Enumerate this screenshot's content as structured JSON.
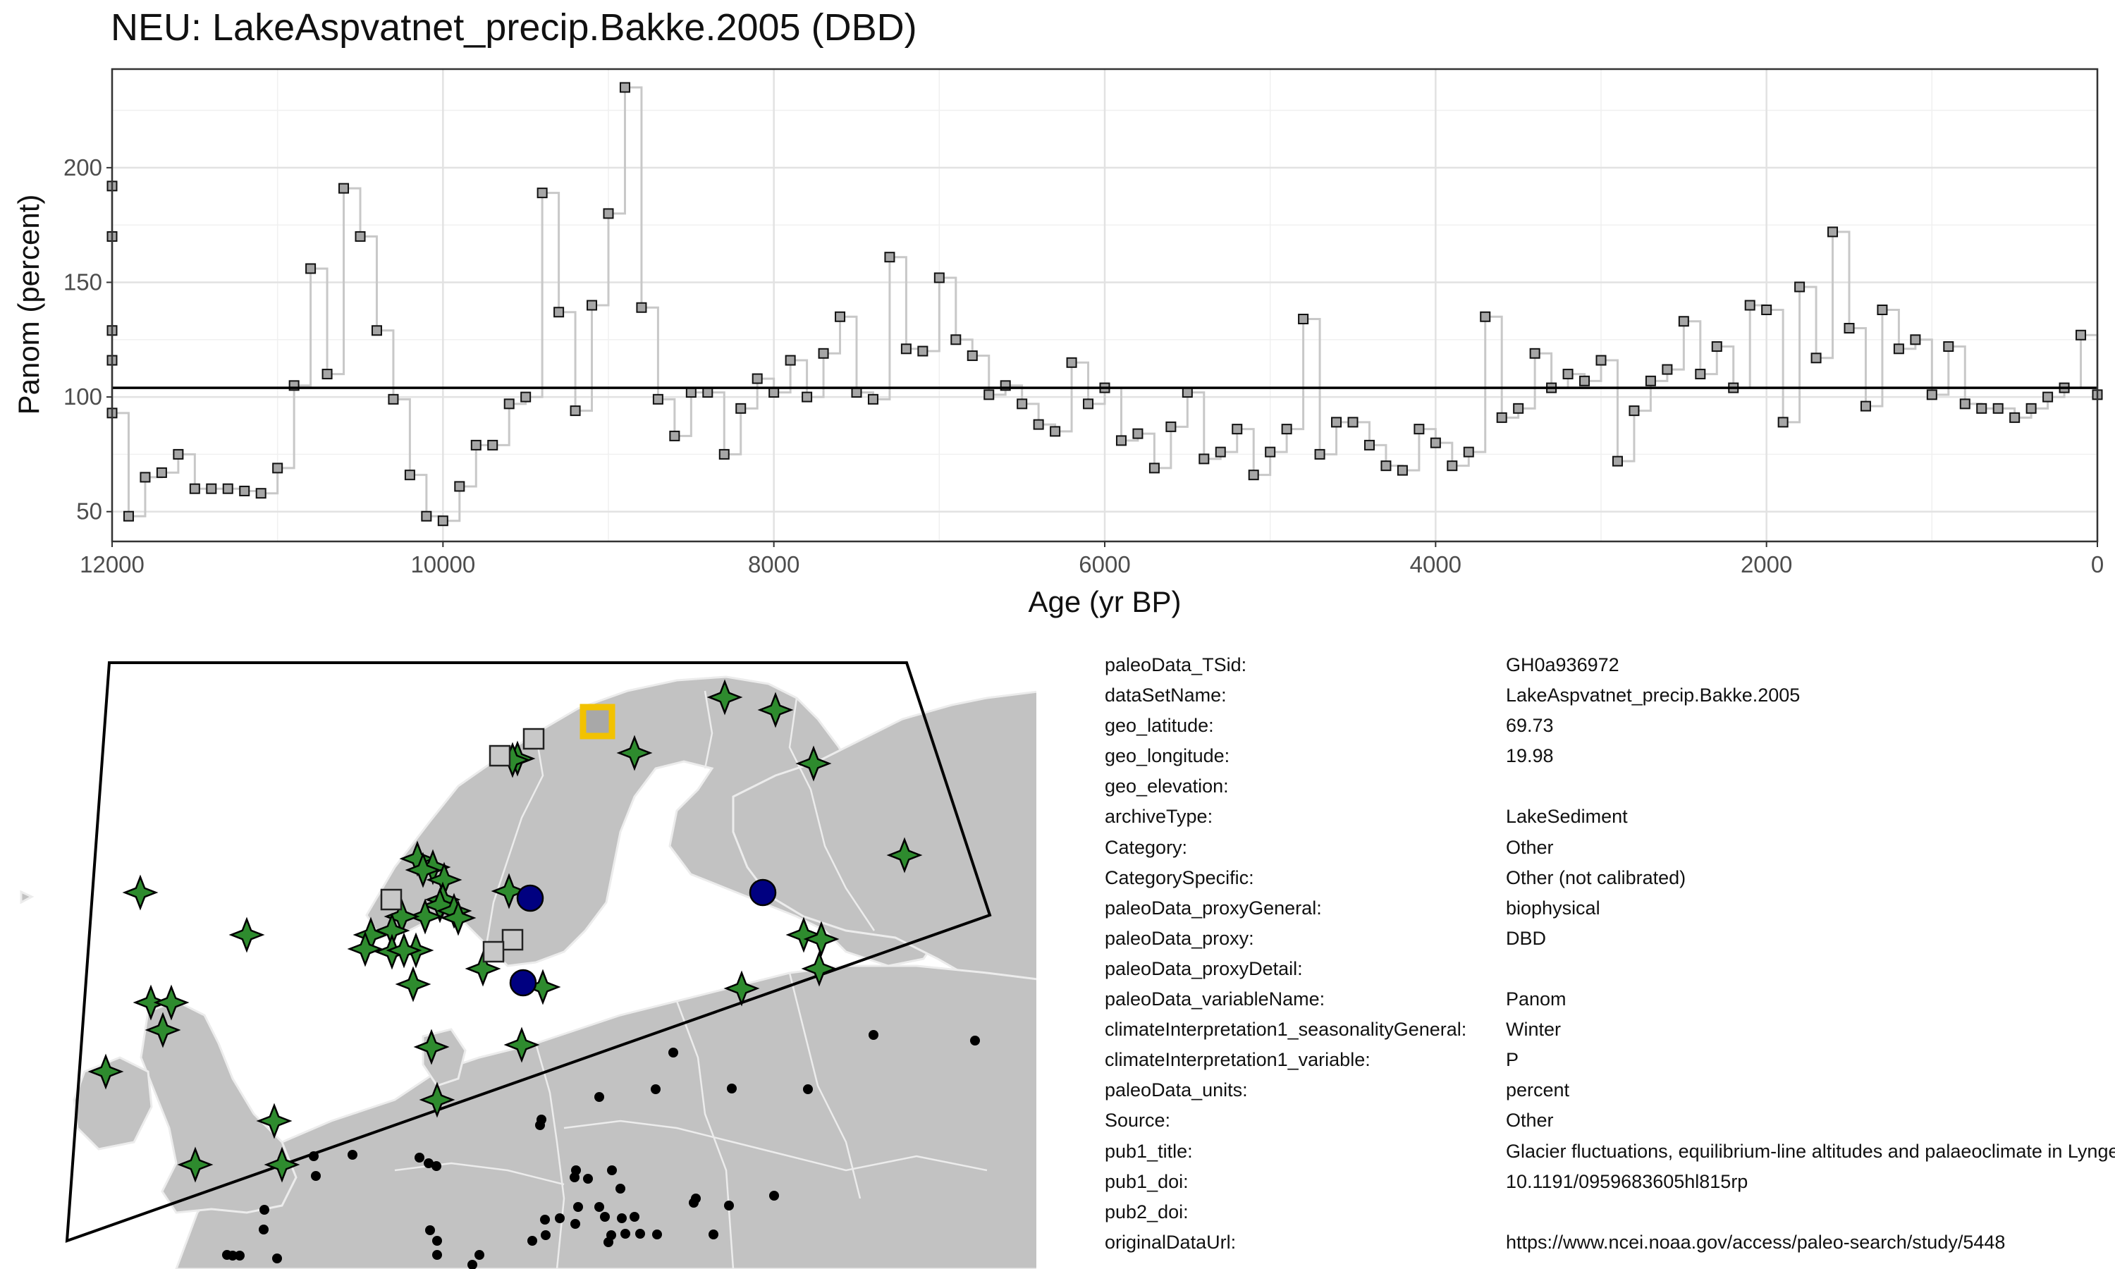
{
  "title": "NEU: LakeAspvatnet_precip.Bakke.2005 (DBD)",
  "chart_data": {
    "type": "line",
    "style": "step",
    "title": "NEU: LakeAspvatnet_precip.Bakke.2005 (DBD)",
    "xlabel": "Age (yr BP)",
    "ylabel": "Panom (percent)",
    "xlim": [
      12000,
      0
    ],
    "ylim": [
      37,
      243
    ],
    "xticks": [
      12000,
      10000,
      8000,
      6000,
      4000,
      2000,
      0
    ],
    "yticks": [
      50,
      100,
      150,
      200
    ],
    "grid": true,
    "mean_line": 104,
    "line_color": "#c8c8c8",
    "marker_color": "#a6a6a6",
    "series": [
      {
        "points": [
          [
            12000,
            192
          ],
          [
            12000,
            170
          ],
          [
            12000,
            129
          ],
          [
            12000,
            116
          ],
          [
            12000,
            93
          ],
          [
            11900,
            48
          ],
          [
            11800,
            65
          ],
          [
            11700,
            67
          ],
          [
            11600,
            75
          ],
          [
            11500,
            60
          ],
          [
            11400,
            60
          ],
          [
            11300,
            60
          ],
          [
            11200,
            59
          ],
          [
            11100,
            58
          ],
          [
            11000,
            69
          ],
          [
            10900,
            105
          ],
          [
            10800,
            156
          ],
          [
            10700,
            110
          ],
          [
            10600,
            191
          ],
          [
            10500,
            170
          ],
          [
            10400,
            129
          ],
          [
            10300,
            99
          ],
          [
            10200,
            66
          ],
          [
            10100,
            48
          ],
          [
            10000,
            46
          ],
          [
            9900,
            61
          ],
          [
            9800,
            79
          ],
          [
            9700,
            79
          ],
          [
            9600,
            97
          ],
          [
            9500,
            100
          ],
          [
            9400,
            189
          ],
          [
            9300,
            137
          ],
          [
            9200,
            94
          ],
          [
            9100,
            140
          ],
          [
            9000,
            180
          ],
          [
            8900,
            235
          ],
          [
            8800,
            139
          ],
          [
            8700,
            99
          ],
          [
            8600,
            83
          ],
          [
            8500,
            102
          ],
          [
            8400,
            102
          ],
          [
            8300,
            75
          ],
          [
            8200,
            95
          ],
          [
            8100,
            108
          ],
          [
            8000,
            102
          ],
          [
            7900,
            116
          ],
          [
            7800,
            100
          ],
          [
            7700,
            119
          ],
          [
            7600,
            135
          ],
          [
            7500,
            102
          ],
          [
            7400,
            99
          ],
          [
            7300,
            161
          ],
          [
            7200,
            121
          ],
          [
            7100,
            120
          ],
          [
            7000,
            152
          ],
          [
            6900,
            125
          ],
          [
            6800,
            118
          ],
          [
            6700,
            101
          ],
          [
            6600,
            105
          ],
          [
            6500,
            97
          ],
          [
            6400,
            88
          ],
          [
            6300,
            85
          ],
          [
            6200,
            115
          ],
          [
            6100,
            97
          ],
          [
            6000,
            104
          ],
          [
            5900,
            81
          ],
          [
            5800,
            84
          ],
          [
            5700,
            69
          ],
          [
            5600,
            87
          ],
          [
            5500,
            102
          ],
          [
            5400,
            73
          ],
          [
            5300,
            76
          ],
          [
            5200,
            86
          ],
          [
            5100,
            66
          ],
          [
            5000,
            76
          ],
          [
            4900,
            86
          ],
          [
            4800,
            134
          ],
          [
            4700,
            75
          ],
          [
            4600,
            89
          ],
          [
            4500,
            89
          ],
          [
            4400,
            79
          ],
          [
            4300,
            70
          ],
          [
            4200,
            68
          ],
          [
            4100,
            86
          ],
          [
            4000,
            80
          ],
          [
            3900,
            70
          ],
          [
            3800,
            76
          ],
          [
            3700,
            135
          ],
          [
            3600,
            91
          ],
          [
            3500,
            95
          ],
          [
            3400,
            119
          ],
          [
            3300,
            104
          ],
          [
            3200,
            110
          ],
          [
            3100,
            107
          ],
          [
            3000,
            116
          ],
          [
            2900,
            72
          ],
          [
            2800,
            94
          ],
          [
            2700,
            107
          ],
          [
            2600,
            112
          ],
          [
            2500,
            133
          ],
          [
            2400,
            110
          ],
          [
            2300,
            122
          ],
          [
            2200,
            104
          ],
          [
            2100,
            140
          ],
          [
            2000,
            138
          ],
          [
            1900,
            89
          ],
          [
            1800,
            148
          ],
          [
            1700,
            117
          ],
          [
            1600,
            172
          ],
          [
            1500,
            130
          ],
          [
            1400,
            96
          ],
          [
            1300,
            138
          ],
          [
            1200,
            121
          ],
          [
            1100,
            125
          ],
          [
            1000,
            101
          ],
          [
            900,
            122
          ],
          [
            800,
            97
          ],
          [
            700,
            95
          ],
          [
            600,
            95
          ],
          [
            500,
            91
          ],
          [
            400,
            95
          ],
          [
            300,
            100
          ],
          [
            200,
            104
          ],
          [
            100,
            127
          ],
          [
            0,
            101
          ]
        ]
      }
    ]
  },
  "map": {
    "map_type": "Europe locator map",
    "land_color": "#c2c2c2",
    "border_color": "#ececec",
    "symbols": [
      {
        "name": "selected",
        "shape": "square",
        "color": "#f2c200"
      },
      {
        "name": "green",
        "shape": "star",
        "color": "#2e8b2e"
      },
      {
        "name": "gray",
        "shape": "square",
        "color": "#c8c8c8"
      },
      {
        "name": "blue",
        "shape": "circle",
        "color": "#000080"
      },
      {
        "name": "black",
        "shape": "dot",
        "color": "#000000"
      }
    ]
  },
  "metadata": [
    {
      "key": "paleoData_TSid:",
      "value": "GH0a936972"
    },
    {
      "key": "dataSetName:",
      "value": "LakeAspvatnet_precip.Bakke.2005"
    },
    {
      "key": "geo_latitude:",
      "value": "69.73"
    },
    {
      "key": "geo_longitude:",
      "value": "19.98"
    },
    {
      "key": "geo_elevation:",
      "value": ""
    },
    {
      "key": "archiveType:",
      "value": "LakeSediment"
    },
    {
      "key": "Category:",
      "value": "Other"
    },
    {
      "key": "CategorySpecific:",
      "value": "Other (not calibrated)"
    },
    {
      "key": "paleoData_proxyGeneral:",
      "value": "biophysical"
    },
    {
      "key": "paleoData_proxy:",
      "value": "DBD"
    },
    {
      "key": "paleoData_proxyDetail:",
      "value": ""
    },
    {
      "key": "paleoData_variableName:",
      "value": "Panom"
    },
    {
      "key": "climateInterpretation1_seasonalityGeneral:",
      "value": "Winter"
    },
    {
      "key": "climateInterpretation1_variable:",
      "value": "P"
    },
    {
      "key": "paleoData_units:",
      "value": "percent"
    },
    {
      "key": "Source:",
      "value": "Other"
    },
    {
      "key": "pub1_title:",
      "value": "Glacier fluctuations, equilibrium-line altitudes and palaeoclimate in Lyngen, northern Norway, during the Lateglacial and Holocene"
    },
    {
      "key": "pub1_doi:",
      "value": "10.1191/0959683605hl815rp"
    },
    {
      "key": "pub2_doi:",
      "value": ""
    },
    {
      "key": "originalDataUrl:",
      "value": "https://www.ncei.noaa.gov/access/paleo-search/study/5448"
    }
  ]
}
